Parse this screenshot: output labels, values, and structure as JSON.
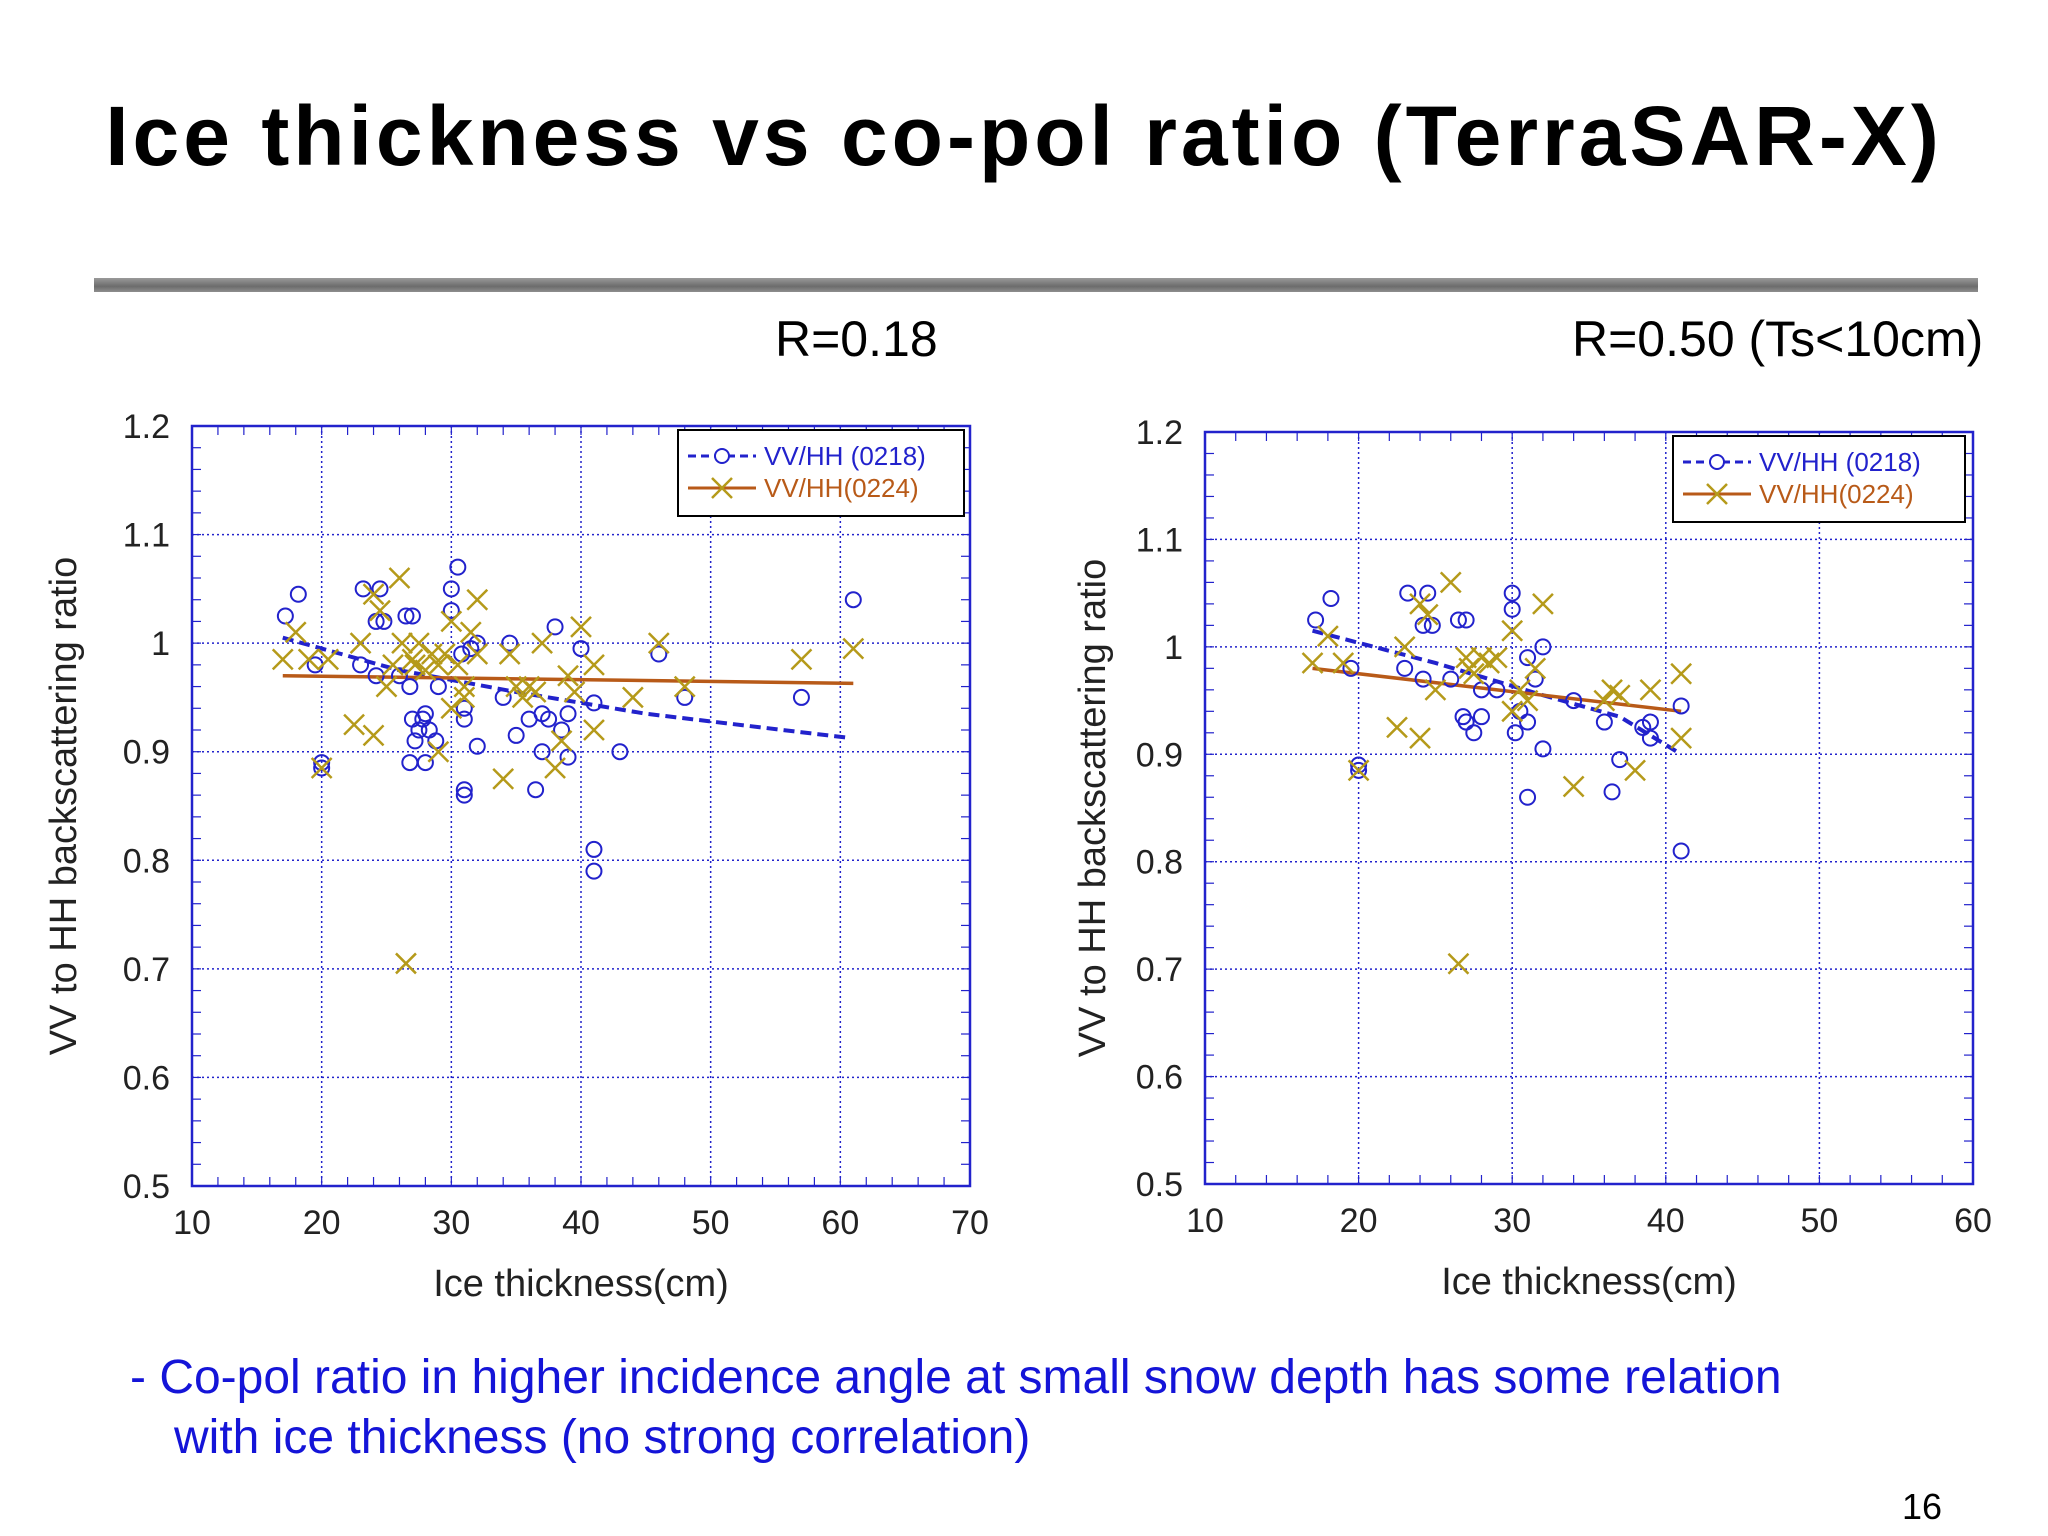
{
  "slide": {
    "title": "Ice thickness vs co-pol ratio (TerraSAR-X)",
    "r_left": "R=0.18",
    "r_right": "R=0.50 (Ts<10cm)",
    "note_line1": "- Co-pol ratio in higher incidence angle at small snow depth has some relation",
    "note_line2": "with ice thickness (no strong correlation)",
    "page_number": "16"
  },
  "colors": {
    "series1": "#2222cc",
    "series2_marker": "#b59a1a",
    "series2_line": "#b85a18",
    "grid": "#2222cc",
    "note_text": "#1414d8"
  },
  "chart_data": [
    {
      "type": "scatter",
      "xlabel": "Ice thickness(cm)",
      "ylabel": "VV to HH backscattering ratio",
      "xlim": [
        10,
        70
      ],
      "ylim": [
        0.5,
        1.2
      ],
      "xticks": [
        10,
        20,
        30,
        40,
        50,
        60,
        70
      ],
      "yticks": [
        0.5,
        0.6,
        0.7,
        0.8,
        0.9,
        1,
        1.1,
        1.2
      ],
      "ytick_labels": [
        "0.5",
        "0.6",
        "0.7",
        "0.8",
        "0.9",
        "1",
        "1.1",
        "1.2"
      ],
      "grid": true,
      "legend_position": "top-right",
      "series": [
        {
          "name": "VV/HH (0218)",
          "marker": "circle",
          "trend": [
            [
              17,
              1.005
            ],
            [
              26,
              0.975
            ],
            [
              35,
              0.955
            ],
            [
              45,
              0.935
            ],
            [
              60.5,
              0.913
            ]
          ],
          "points": [
            [
              17.2,
              1.025
            ],
            [
              18.2,
              1.045
            ],
            [
              19.5,
              0.98
            ],
            [
              20,
              0.885
            ],
            [
              20,
              0.89
            ],
            [
              23,
              0.98
            ],
            [
              23.2,
              1.05
            ],
            [
              24.2,
              1.02
            ],
            [
              24.8,
              1.02
            ],
            [
              24.5,
              1.05
            ],
            [
              24.2,
              0.97
            ],
            [
              26,
              0.97
            ],
            [
              26.5,
              1.025
            ],
            [
              27,
              1.025
            ],
            [
              26.8,
              0.96
            ],
            [
              27,
              0.93
            ],
            [
              27.2,
              0.91
            ],
            [
              27.5,
              0.92
            ],
            [
              28,
              0.935
            ],
            [
              27.8,
              0.93
            ],
            [
              28.3,
              0.92
            ],
            [
              26.8,
              0.89
            ],
            [
              28,
              0.89
            ],
            [
              28.8,
              0.91
            ],
            [
              29,
              0.96
            ],
            [
              30,
              1.03
            ],
            [
              30,
              1.05
            ],
            [
              30.5,
              1.07
            ],
            [
              30.8,
              0.99
            ],
            [
              31,
              0.93
            ],
            [
              31,
              0.94
            ],
            [
              31,
              0.865
            ],
            [
              31,
              0.86
            ],
            [
              31.5,
              0.995
            ],
            [
              32,
              1.0
            ],
            [
              32,
              0.905
            ],
            [
              34,
              0.95
            ],
            [
              34.5,
              1.0
            ],
            [
              35,
              0.915
            ],
            [
              36,
              0.93
            ],
            [
              36.5,
              0.865
            ],
            [
              37,
              0.935
            ],
            [
              37,
              0.9
            ],
            [
              37.5,
              0.93
            ],
            [
              38,
              1.015
            ],
            [
              38.5,
              0.92
            ],
            [
              39,
              0.935
            ],
            [
              39,
              0.895
            ],
            [
              40,
              0.995
            ],
            [
              41,
              0.81
            ],
            [
              41,
              0.79
            ],
            [
              41,
              0.945
            ],
            [
              43,
              0.9
            ],
            [
              46,
              0.99
            ],
            [
              48,
              0.95
            ],
            [
              57,
              0.95
            ],
            [
              61,
              1.04
            ]
          ]
        },
        {
          "name": "VV/HH(0224)",
          "marker": "x",
          "trend": [
            [
              17,
              0.97
            ],
            [
              61,
              0.963
            ]
          ],
          "points": [
            [
              17,
              0.985
            ],
            [
              18,
              1.01
            ],
            [
              19,
              0.985
            ],
            [
              20,
              0.885
            ],
            [
              20.5,
              0.985
            ],
            [
              22.5,
              0.925
            ],
            [
              23,
              1.0
            ],
            [
              24,
              0.915
            ],
            [
              24,
              1.045
            ],
            [
              24.5,
              1.03
            ],
            [
              25,
              0.96
            ],
            [
              25.5,
              0.98
            ],
            [
              26,
              1.06
            ],
            [
              26.2,
              1.0
            ],
            [
              26.5,
              0.705
            ],
            [
              27,
              0.985
            ],
            [
              27.2,
              0.98
            ],
            [
              27.5,
              1.0
            ],
            [
              28,
              0.975
            ],
            [
              28.5,
              0.99
            ],
            [
              29,
              0.98
            ],
            [
              29,
              0.9
            ],
            [
              29.5,
              0.99
            ],
            [
              30,
              1.02
            ],
            [
              30,
              0.94
            ],
            [
              30.5,
              0.98
            ],
            [
              31,
              0.95
            ],
            [
              31,
              0.96
            ],
            [
              31.5,
              1.01
            ],
            [
              32,
              1.04
            ],
            [
              32,
              0.99
            ],
            [
              34,
              0.875
            ],
            [
              34.5,
              0.99
            ],
            [
              35,
              0.96
            ],
            [
              35.5,
              0.95
            ],
            [
              36,
              0.96
            ],
            [
              36.5,
              0.955
            ],
            [
              37,
              1.0
            ],
            [
              38,
              0.885
            ],
            [
              38.5,
              0.91
            ],
            [
              39,
              0.97
            ],
            [
              39.5,
              0.955
            ],
            [
              40,
              1.015
            ],
            [
              41,
              0.98
            ],
            [
              41,
              0.92
            ],
            [
              44,
              0.95
            ],
            [
              46,
              1.0
            ],
            [
              48,
              0.96
            ],
            [
              57,
              0.985
            ],
            [
              61,
              0.995
            ]
          ]
        }
      ]
    },
    {
      "type": "scatter",
      "xlabel": "Ice thickness(cm)",
      "ylabel": "VV to HH backscattering ratio",
      "xlim": [
        10,
        60
      ],
      "ylim": [
        0.5,
        1.2
      ],
      "xticks": [
        10,
        20,
        30,
        40,
        50,
        60
      ],
      "yticks": [
        0.5,
        0.6,
        0.7,
        0.8,
        0.9,
        1,
        1.1,
        1.2
      ],
      "ytick_labels": [
        "0.5",
        "0.6",
        "0.7",
        "0.8",
        "0.9",
        "1",
        "1.1",
        "1.2"
      ],
      "grid": true,
      "legend_position": "top-right",
      "series": [
        {
          "name": "VV/HH (0218)",
          "marker": "circle",
          "trend": [
            [
              17,
              1.015
            ],
            [
              25,
              0.985
            ],
            [
              32,
              0.955
            ],
            [
              37,
              0.935
            ],
            [
              41,
              0.9
            ]
          ],
          "points": [
            [
              17.2,
              1.025
            ],
            [
              18.2,
              1.045
            ],
            [
              19.5,
              0.98
            ],
            [
              20,
              0.885
            ],
            [
              20,
              0.89
            ],
            [
              23,
              0.98
            ],
            [
              23.2,
              1.05
            ],
            [
              24.2,
              1.02
            ],
            [
              24.8,
              1.02
            ],
            [
              24.5,
              1.05
            ],
            [
              24.2,
              0.97
            ],
            [
              26,
              0.97
            ],
            [
              26.5,
              1.025
            ],
            [
              27,
              1.025
            ],
            [
              26.8,
              0.935
            ],
            [
              27,
              0.93
            ],
            [
              27.5,
              0.92
            ],
            [
              28,
              0.935
            ],
            [
              28,
              0.96
            ],
            [
              29,
              0.96
            ],
            [
              30,
              1.035
            ],
            [
              30,
              1.05
            ],
            [
              30.2,
              0.92
            ],
            [
              30.5,
              0.94
            ],
            [
              31,
              0.99
            ],
            [
              31,
              0.93
            ],
            [
              31,
              0.86
            ],
            [
              31.5,
              0.97
            ],
            [
              32,
              1.0
            ],
            [
              32,
              0.905
            ],
            [
              34,
              0.95
            ],
            [
              36,
              0.93
            ],
            [
              36.5,
              0.865
            ],
            [
              37,
              0.895
            ],
            [
              38.5,
              0.925
            ],
            [
              39,
              0.93
            ],
            [
              39,
              0.915
            ],
            [
              41,
              0.945
            ],
            [
              41,
              0.81
            ]
          ]
        },
        {
          "name": "VV/HH(0224)",
          "marker": "x",
          "trend": [
            [
              17,
              0.98
            ],
            [
              41,
              0.94
            ]
          ],
          "points": [
            [
              17,
              0.985
            ],
            [
              18,
              1.01
            ],
            [
              19,
              0.985
            ],
            [
              20,
              0.885
            ],
            [
              22.5,
              0.925
            ],
            [
              23,
              1.0
            ],
            [
              24,
              0.915
            ],
            [
              24,
              1.04
            ],
            [
              24.5,
              1.03
            ],
            [
              25,
              0.96
            ],
            [
              26,
              1.06
            ],
            [
              26.5,
              0.705
            ],
            [
              27,
              0.99
            ],
            [
              27.2,
              0.98
            ],
            [
              27.5,
              0.975
            ],
            [
              28,
              0.99
            ],
            [
              28.5,
              0.985
            ],
            [
              29,
              0.99
            ],
            [
              30,
              1.015
            ],
            [
              30,
              0.94
            ],
            [
              30.5,
              0.96
            ],
            [
              31,
              0.95
            ],
            [
              31.5,
              0.98
            ],
            [
              32,
              1.04
            ],
            [
              34,
              0.87
            ],
            [
              36,
              0.95
            ],
            [
              36.5,
              0.96
            ],
            [
              37,
              0.955
            ],
            [
              38,
              0.885
            ],
            [
              39,
              0.96
            ],
            [
              41,
              0.975
            ],
            [
              41,
              0.915
            ]
          ]
        }
      ]
    }
  ]
}
